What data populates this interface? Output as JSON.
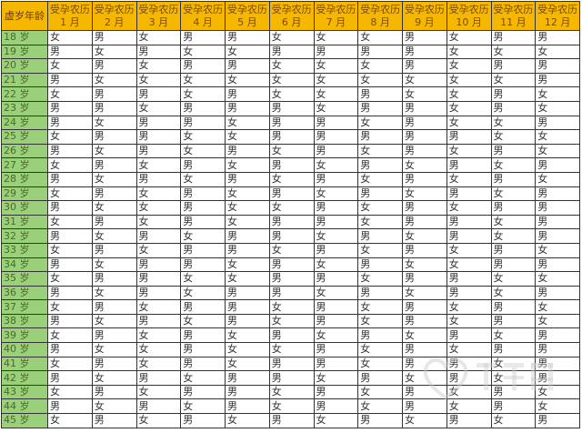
{
  "header": {
    "age_label": "虚岁年龄",
    "month_prefix": "受孕农历",
    "months": [
      "1 月",
      "2 月",
      "3 月",
      "4 月",
      "5 月",
      "6 月",
      "7 月",
      "8 月",
      "9 月",
      "10 月",
      "11 月",
      "12 月"
    ]
  },
  "rows": [
    {
      "age": "18 岁",
      "cells": [
        "女",
        "男",
        "女",
        "男",
        "男",
        "女",
        "女",
        "女",
        "男",
        "女",
        "男",
        "男"
      ]
    },
    {
      "age": "19 岁",
      "cells": [
        "男",
        "女",
        "男",
        "女",
        "女",
        "男",
        "男",
        "男",
        "男",
        "女",
        "女",
        "女"
      ]
    },
    {
      "age": "20 岁",
      "cells": [
        "女",
        "男",
        "女",
        "男",
        "男",
        "女",
        "女",
        "女",
        "男",
        "女",
        "男",
        "男"
      ]
    },
    {
      "age": "21 岁",
      "cells": [
        "男",
        "女",
        "女",
        "女",
        "女",
        "女",
        "女",
        "女",
        "女",
        "女",
        "女",
        "男"
      ]
    },
    {
      "age": "22 岁",
      "cells": [
        "女",
        "男",
        "男",
        "女",
        "男",
        "女",
        "女",
        "男",
        "女",
        "女",
        "男",
        "女"
      ]
    },
    {
      "age": "23 岁",
      "cells": [
        "男",
        "男",
        "女",
        "男",
        "男",
        "男",
        "女",
        "男",
        "男",
        "女",
        "男",
        "女"
      ]
    },
    {
      "age": "24 岁",
      "cells": [
        "男",
        "女",
        "男",
        "男",
        "女",
        "男",
        "男",
        "女",
        "男",
        "女",
        "女",
        "男"
      ]
    },
    {
      "age": "25 岁",
      "cells": [
        "女",
        "男",
        "男",
        "女",
        "女",
        "男",
        "男",
        "男",
        "男",
        "男",
        "女",
        "女"
      ]
    },
    {
      "age": "26 岁",
      "cells": [
        "男",
        "女",
        "男",
        "女",
        "男",
        "女",
        "男",
        "女",
        "男",
        "女",
        "男",
        "女"
      ]
    },
    {
      "age": "27 岁",
      "cells": [
        "女",
        "男",
        "女",
        "男",
        "女",
        "男",
        "女",
        "男",
        "女",
        "男",
        "女",
        "男"
      ]
    },
    {
      "age": "28 岁",
      "cells": [
        "男",
        "女",
        "男",
        "女",
        "男",
        "女",
        "男",
        "女",
        "男",
        "女",
        "男",
        "女"
      ]
    },
    {
      "age": "29 岁",
      "cells": [
        "女",
        "男",
        "女",
        "男",
        "女",
        "男",
        "女",
        "男",
        "女",
        "男",
        "女",
        "男"
      ]
    },
    {
      "age": "30 岁",
      "cells": [
        "男",
        "女",
        "女",
        "男",
        "女",
        "女",
        "男",
        "女",
        "男",
        "女",
        "男",
        "男"
      ]
    },
    {
      "age": "31 岁",
      "cells": [
        "女",
        "男",
        "女",
        "男",
        "女",
        "男",
        "男",
        "女",
        "男",
        "男",
        "女",
        "男"
      ]
    },
    {
      "age": "32 岁",
      "cells": [
        "男",
        "女",
        "男",
        "女",
        "男",
        "男",
        "女",
        "男",
        "女",
        "男",
        "女",
        "男"
      ]
    },
    {
      "age": "33 岁",
      "cells": [
        "女",
        "男",
        "女",
        "男",
        "男",
        "女",
        "男",
        "女",
        "男",
        "女",
        "男",
        "女"
      ]
    },
    {
      "age": "34 岁",
      "cells": [
        "男",
        "女",
        "男",
        "男",
        "女",
        "男",
        "女",
        "男",
        "女",
        "女",
        "男",
        "男"
      ]
    },
    {
      "age": "35 岁",
      "cells": [
        "女",
        "男",
        "男",
        "女",
        "女",
        "男",
        "男",
        "女",
        "男",
        "男",
        "女",
        "女"
      ]
    },
    {
      "age": "36 岁",
      "cells": [
        "男",
        "女",
        "男",
        "女",
        "男",
        "男",
        "女",
        "男",
        "女",
        "男",
        "女",
        "男"
      ]
    },
    {
      "age": "37 岁",
      "cells": [
        "女",
        "男",
        "女",
        "男",
        "男",
        "女",
        "男",
        "女",
        "男",
        "女",
        "男",
        "女"
      ]
    },
    {
      "age": "38 岁",
      "cells": [
        "男",
        "女",
        "男",
        "女",
        "男",
        "女",
        "男",
        "女",
        "男",
        "女",
        "男",
        "女"
      ]
    },
    {
      "age": "39 岁",
      "cells": [
        "女",
        "男",
        "女",
        "男",
        "女",
        "男",
        "女",
        "男",
        "女",
        "男",
        "女",
        "男"
      ]
    },
    {
      "age": "40 岁",
      "cells": [
        "男",
        "女",
        "女",
        "男",
        "女",
        "女",
        "男",
        "女",
        "男",
        "女",
        "男",
        "男"
      ]
    },
    {
      "age": "41 岁",
      "cells": [
        "女",
        "男",
        "女",
        "男",
        "女",
        "男",
        "男",
        "女",
        "男",
        "男",
        "女",
        "男"
      ]
    },
    {
      "age": "42 岁",
      "cells": [
        "男",
        "女",
        "男",
        "女",
        "男",
        "男",
        "女",
        "男",
        "女",
        "男",
        "女",
        "男"
      ]
    },
    {
      "age": "43 岁",
      "cells": [
        "女",
        "男",
        "女",
        "男",
        "男",
        "女",
        "男",
        "女",
        "男",
        "女",
        "男",
        "女"
      ]
    },
    {
      "age": "44 岁",
      "cells": [
        "男",
        "女",
        "男",
        "女",
        "男",
        "女",
        "男",
        "女",
        "男",
        "女",
        "男",
        "女"
      ]
    },
    {
      "age": "45 岁",
      "cells": [
        "女",
        "男",
        "女",
        "男",
        "女",
        "男",
        "女",
        "男",
        "女",
        "男",
        "女",
        "男"
      ]
    }
  ],
  "colors": {
    "header_bg": "#f5b700",
    "age_bg": "#9bd07a",
    "border": "#333333"
  },
  "watermark": "好孕帮"
}
